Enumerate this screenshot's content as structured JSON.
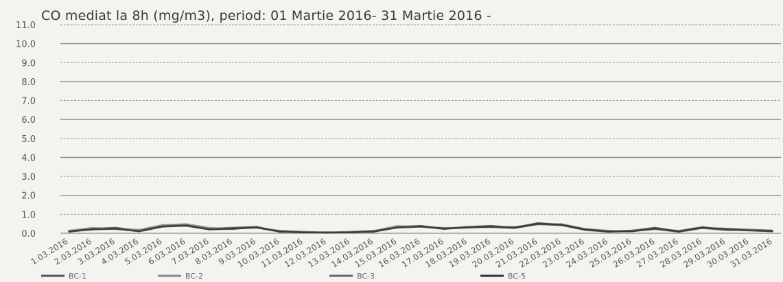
{
  "chart_data": {
    "type": "line",
    "title": "CO mediat la 8h (mg/m3), period: 01 Martie 2016- 31 Martie 2016 -",
    "ylim": [
      0,
      11
    ],
    "yticks": [
      "0.0",
      "1.0",
      "2.0",
      "3.0",
      "4.0",
      "5.0",
      "6.0",
      "7.0",
      "8.0",
      "9.0",
      "10.0",
      "11.0"
    ],
    "grid": true,
    "legend_position": "bottom",
    "categories": [
      "1.03.2016",
      "2.03.2016",
      "3.03.2016",
      "4.03.2016",
      "5.03.2016",
      "6.03.2016",
      "7.03.2016",
      "8.03.2016",
      "9.03.2016",
      "10.03.2016",
      "11.03.2016",
      "12.03.2016",
      "13.03.2016",
      "14.03.2016",
      "15.03.2016",
      "16.03.2016",
      "17.03.2016",
      "18.03.2016",
      "19.03.2016",
      "20.03.2016",
      "21.03.2016",
      "22.03.2016",
      "23.03.2016",
      "24.03.2016",
      "25.03.2016",
      "26.03.2016",
      "27.03.2016",
      "28.03.2016",
      "29.03.2016",
      "30.03.2016",
      "31.03.2016"
    ],
    "series": [
      {
        "name": "BC-1",
        "color": "#555555",
        "values": [
          0.1,
          0.25,
          0.3,
          0.15,
          0.4,
          0.45,
          0.25,
          0.3,
          0.35,
          0.1,
          0.05,
          0.05,
          0.05,
          0.1,
          0.35,
          0.4,
          0.25,
          0.35,
          0.4,
          0.3,
          0.55,
          0.45,
          0.2,
          0.1,
          0.15,
          0.3,
          0.1,
          0.3,
          0.25,
          0.2,
          0.15
        ]
      },
      {
        "name": "BC-2",
        "color": "#888888",
        "values": [
          0.15,
          0.3,
          0.25,
          0.2,
          0.45,
          0.5,
          0.3,
          0.25,
          0.3,
          0.15,
          0.1,
          0.05,
          0.1,
          0.15,
          0.4,
          0.35,
          0.3,
          0.3,
          0.35,
          0.35,
          0.5,
          0.5,
          0.25,
          0.15,
          0.1,
          0.25,
          0.15,
          0.35,
          0.2,
          0.2,
          0.1
        ]
      },
      {
        "name": "BC-3",
        "color": "#666666",
        "values": [
          0.05,
          0.2,
          0.2,
          0.1,
          0.35,
          0.4,
          0.2,
          0.2,
          0.3,
          0.05,
          0.05,
          0.0,
          0.05,
          0.05,
          0.3,
          0.35,
          0.2,
          0.3,
          0.3,
          0.25,
          0.45,
          0.4,
          0.15,
          0.05,
          0.1,
          0.2,
          0.05,
          0.25,
          0.15,
          0.15,
          0.1
        ]
      },
      {
        "name": "BC-5",
        "color": "#333333",
        "values": [
          0.1,
          0.2,
          0.25,
          0.1,
          0.35,
          0.4,
          0.2,
          0.25,
          0.3,
          0.1,
          0.05,
          0.05,
          0.05,
          0.1,
          0.3,
          0.35,
          0.25,
          0.3,
          0.35,
          0.3,
          0.5,
          0.45,
          0.2,
          0.1,
          0.1,
          0.25,
          0.1,
          0.3,
          0.2,
          0.15,
          0.1
        ]
      }
    ]
  }
}
